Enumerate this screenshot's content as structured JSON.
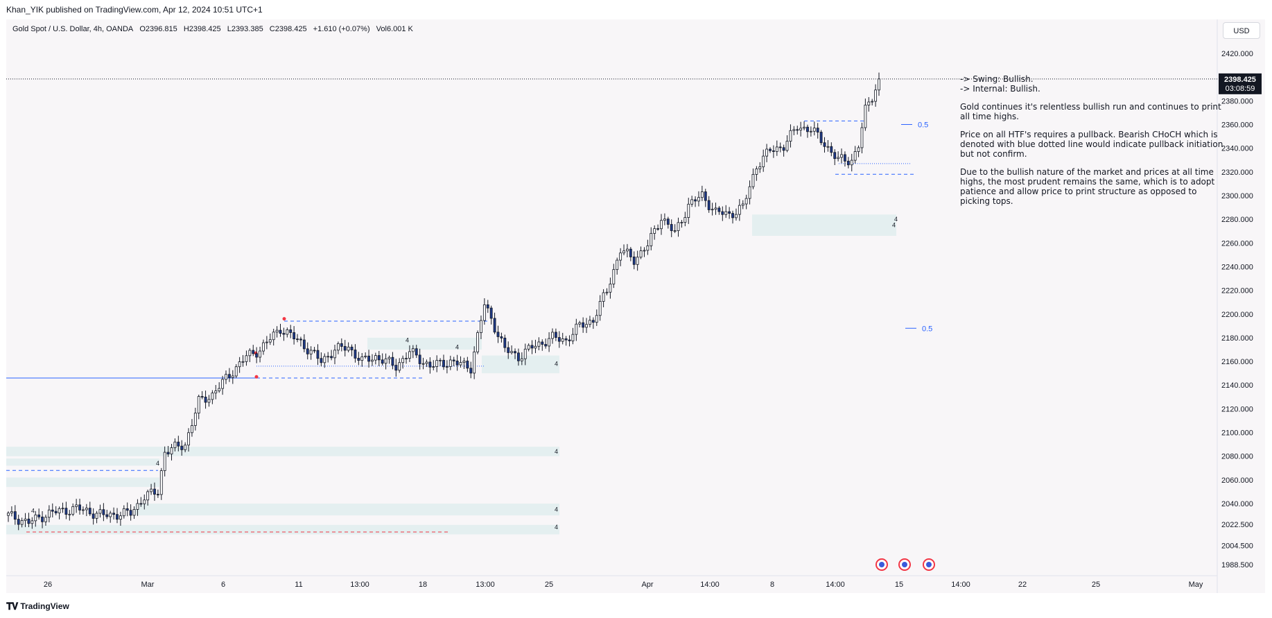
{
  "header": {
    "author": "Khan_YIK",
    "published": "published on TradingView.com, Apr 12, 2024 10:51 UTC+1"
  },
  "legend": {
    "symbol": "Gold Spot / U.S. Dollar, 4h, OANDA",
    "open": "O2396.815",
    "high": "H2398.425",
    "low": "L2393.385",
    "close": "C2398.425",
    "change": "+1.610 (+0.07%)",
    "volume": "Vol6.001 K"
  },
  "currency": "USD",
  "price_badge": {
    "price": "2398.425",
    "countdown": "03:08:59"
  },
  "notes": {
    "swing": "-> Swing:  Bullish.",
    "internal": "-> Internal:  Bullish.",
    "p1": "Gold continues it's relentless bullish run and continues to print all time highs.",
    "p2": "Price on all HTF's requires a pullback.  Bearish CHoCH which is denoted with blue dotted line would indicate pullback initiation but not confirm.",
    "p3": "Due to the bullish nature of the market and prices at all time highs, the most prudent remains the same, which is to adopt patience and allow price to print structure as opposed to picking tops."
  },
  "footer": {
    "logo_text": "TradingView",
    "logo_icon": "tradingview-logo-icon"
  },
  "chart_data": {
    "type": "candlestick",
    "timeframe": "4h",
    "y_ticks": [
      "2420.000",
      "2400.000",
      "2380.000",
      "2360.000",
      "2340.000",
      "2320.000",
      "2300.000",
      "2280.000",
      "2260.000",
      "2240.000",
      "2220.000",
      "2200.000",
      "2180.000",
      "2160.000",
      "2140.000",
      "2120.000",
      "2100.000",
      "2080.000",
      "2060.000",
      "2040.000",
      "2022.500",
      "2004.500",
      "1988.500"
    ],
    "x_ticks": [
      "26",
      "Mar",
      "6",
      "11",
      "13:00",
      "18",
      "13:00",
      "25",
      "Apr",
      "14:00",
      "8",
      "14:00",
      "15",
      "14:00",
      "22",
      "25",
      "May"
    ],
    "ylim": [
      1985,
      2425
    ],
    "fib_labels": [
      {
        "text": "0.5",
        "price": 2360
      },
      {
        "text": "0.5",
        "price": 2188
      }
    ],
    "zone_labels": [
      "4",
      "4",
      "4",
      "4",
      "4",
      "4",
      "4",
      "4",
      "4",
      "4"
    ],
    "anchors": [
      [
        0,
        2030
      ],
      [
        6,
        2024
      ],
      [
        12,
        2032
      ],
      [
        20,
        2036
      ],
      [
        28,
        2030
      ],
      [
        36,
        2032
      ],
      [
        40,
        2046
      ],
      [
        44,
        2050
      ],
      [
        46,
        2084
      ],
      [
        52,
        2090
      ],
      [
        56,
        2126
      ],
      [
        60,
        2132
      ],
      [
        66,
        2152
      ],
      [
        70,
        2164
      ],
      [
        74,
        2170
      ],
      [
        80,
        2188
      ],
      [
        86,
        2176
      ],
      [
        92,
        2160
      ],
      [
        96,
        2170
      ],
      [
        100,
        2172
      ],
      [
        104,
        2160
      ],
      [
        108,
        2164
      ],
      [
        114,
        2156
      ],
      [
        118,
        2168
      ],
      [
        124,
        2156
      ],
      [
        130,
        2160
      ],
      [
        136,
        2155
      ],
      [
        140,
        2208
      ],
      [
        142,
        2196
      ],
      [
        146,
        2170
      ],
      [
        150,
        2164
      ],
      [
        154,
        2172
      ],
      [
        160,
        2180
      ],
      [
        164,
        2178
      ],
      [
        168,
        2190
      ],
      [
        172,
        2195
      ],
      [
        176,
        2220
      ],
      [
        180,
        2254
      ],
      [
        184,
        2246
      ],
      [
        188,
        2258
      ],
      [
        192,
        2282
      ],
      [
        196,
        2268
      ],
      [
        200,
        2292
      ],
      [
        204,
        2300
      ],
      [
        208,
        2286
      ],
      [
        212,
        2284
      ],
      [
        216,
        2290
      ],
      [
        220,
        2325
      ],
      [
        224,
        2338
      ],
      [
        228,
        2342
      ],
      [
        232,
        2358
      ],
      [
        236,
        2356
      ],
      [
        240,
        2344
      ],
      [
        244,
        2330
      ],
      [
        248,
        2330
      ],
      [
        250,
        2342
      ],
      [
        252,
        2372
      ],
      [
        254,
        2384
      ],
      [
        256,
        2398.425
      ]
    ]
  }
}
